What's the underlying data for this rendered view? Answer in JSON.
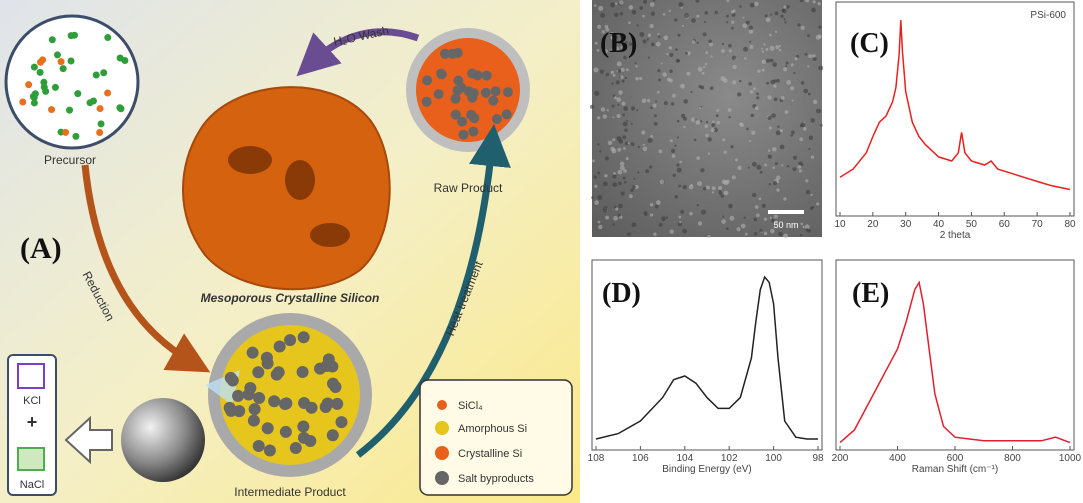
{
  "panel_a": {
    "label": "(A)",
    "precursor": "Precursor",
    "wash": "H₂O Wash",
    "raw_product": "Raw Product",
    "reduction": "Reduction",
    "product": "Mesoporous Crystalline Silicon",
    "heat": "Heat treatment",
    "intermediate": "Intermediate Product",
    "salts": [
      "KCl",
      "+",
      "NaCl"
    ],
    "legend": [
      "SiCl₄",
      "Amorphous Si",
      "Crystalline Si",
      "Salt byproducts"
    ]
  },
  "panel_b": {
    "label": "(B)",
    "scale_bar": "50 nm"
  },
  "chart_data": [
    {
      "type": "line",
      "label": "(C)",
      "annotation": "PSi-600",
      "xlabel": "2 theta",
      "color": "#e8201e",
      "x": [
        10,
        14,
        18,
        20,
        22,
        24,
        26,
        27,
        28,
        28.5,
        29,
        30,
        32,
        34,
        36,
        40,
        44,
        46,
        47,
        48,
        50,
        54,
        56,
        58,
        62,
        66,
        70,
        74,
        80
      ],
      "values": [
        18,
        22,
        30,
        38,
        45,
        48,
        55,
        62,
        78,
        95,
        80,
        60,
        45,
        38,
        34,
        28,
        26,
        30,
        40,
        30,
        26,
        24,
        26,
        22,
        20,
        18,
        16,
        14,
        12
      ],
      "xlim": [
        10,
        80
      ],
      "ylim": [
        0,
        100
      ],
      "xticks": [
        10,
        20,
        30,
        40,
        50,
        60,
        70,
        80
      ]
    },
    {
      "type": "line",
      "label": "(D)",
      "xlabel": "Binding Energy (eV)",
      "color": "#222222",
      "x": [
        108,
        107,
        106,
        105,
        104.5,
        104,
        103.5,
        103,
        102.5,
        102,
        101.5,
        101,
        100.8,
        100.6,
        100.4,
        100.2,
        100,
        99.8,
        99.5,
        99,
        98.5,
        98
      ],
      "values": [
        5,
        8,
        15,
        28,
        38,
        40,
        36,
        28,
        22,
        22,
        28,
        50,
        70,
        88,
        95,
        92,
        80,
        50,
        15,
        6,
        5,
        5
      ],
      "xlim": [
        108,
        98
      ],
      "ylim": [
        0,
        100
      ],
      "xticks": [
        108,
        106,
        104,
        102,
        100,
        98
      ]
    },
    {
      "type": "line",
      "label": "(E)",
      "xlabel": "Raman Shift (cm⁻¹)",
      "color": "#e02030",
      "x": [
        200,
        250,
        300,
        350,
        400,
        430,
        460,
        475,
        490,
        510,
        530,
        560,
        600,
        650,
        700,
        800,
        900,
        950,
        1000
      ],
      "values": [
        3,
        10,
        25,
        40,
        55,
        70,
        88,
        92,
        80,
        55,
        30,
        12,
        6,
        5,
        4,
        4,
        4,
        6,
        3
      ],
      "xlim": [
        200,
        1000
      ],
      "ylim": [
        0,
        100
      ],
      "xticks": [
        200,
        400,
        600,
        800,
        1000
      ]
    }
  ]
}
